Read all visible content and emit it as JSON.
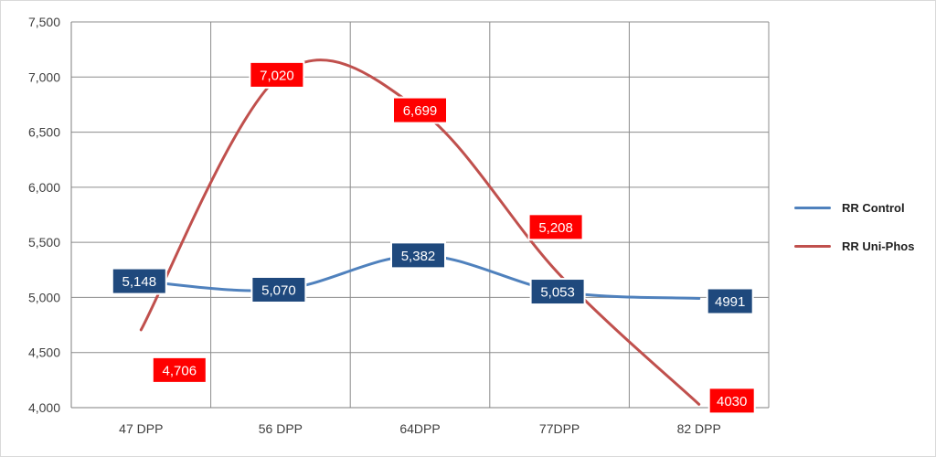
{
  "chart_data": {
    "type": "line",
    "categories": [
      "47 DPP",
      "56 DPP",
      "64DPP",
      "77DPP",
      "82 DPP"
    ],
    "series": [
      {
        "name": "RR Control",
        "values": [
          5148,
          5070,
          5382,
          5053,
          4991
        ],
        "labels": [
          "5,148",
          "5,070",
          "5,382",
          "5,053",
          "4991"
        ],
        "color": "#4f81bd",
        "label_bg": "#1f497d"
      },
      {
        "name": "RR Uni-Phos",
        "values": [
          4706,
          7020,
          6699,
          5208,
          4030
        ],
        "labels": [
          "4,706",
          "7,020",
          "6,699",
          "5,208",
          "4030"
        ],
        "color": "#c0504d",
        "label_bg": "#ff0000"
      }
    ],
    "ylim": [
      4000,
      7500
    ],
    "yticks": [
      4000,
      4500,
      5000,
      5500,
      6000,
      6500,
      7000,
      7500
    ],
    "ytick_labels": [
      "4,000",
      "4,500",
      "5,000",
      "5,500",
      "6,000",
      "6,500",
      "7,000",
      "7,500"
    ],
    "grid": true,
    "legend_position": "right",
    "smooth": true
  }
}
